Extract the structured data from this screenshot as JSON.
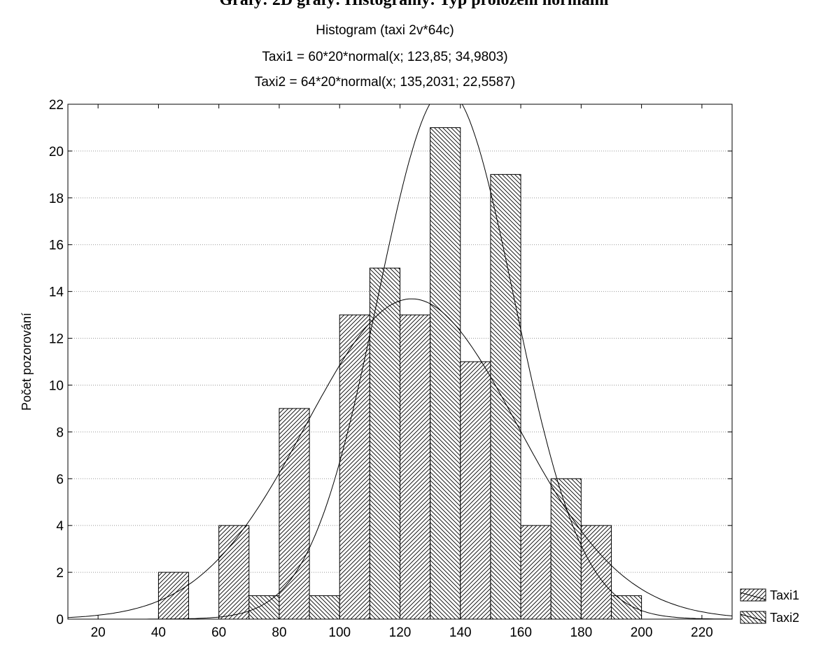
{
  "header": {
    "caption": "Grafy: 2D grafy: Histogramy: Typ proložení normální"
  },
  "chart_data": {
    "type": "bar",
    "title": "Histogram (taxi 2v*64c)",
    "subtitle_lines": [
      "Taxi1 = 60*20*normal(x; 123,85; 34,9803)",
      "Taxi2 = 64*20*normal(x; 135,2031; 22,5587)"
    ],
    "xlabel": "",
    "ylabel": "Počet pozorování",
    "xlim": [
      10,
      230
    ],
    "ylim": [
      0,
      22
    ],
    "x_ticks": [
      20,
      40,
      60,
      80,
      100,
      120,
      140,
      160,
      180,
      200,
      220
    ],
    "y_ticks": [
      0,
      2,
      4,
      6,
      8,
      10,
      12,
      14,
      16,
      18,
      20,
      22
    ],
    "grid": true,
    "legend_position": "bottom-right",
    "bin_width": 20,
    "bin_centers": [
      50,
      70,
      90,
      110,
      130,
      150,
      170,
      190
    ],
    "series": [
      {
        "name": "Taxi1",
        "values": [
          2,
          4,
          9,
          13,
          13,
          11,
          4,
          4
        ],
        "fit": {
          "n": 60,
          "mean": 123.85,
          "sd": 34.9803
        }
      },
      {
        "name": "Taxi2",
        "values": [
          0,
          1,
          1,
          15,
          21,
          19,
          6,
          1
        ],
        "fit": {
          "n": 64,
          "mean": 135.2031,
          "sd": 22.5587
        }
      }
    ]
  }
}
